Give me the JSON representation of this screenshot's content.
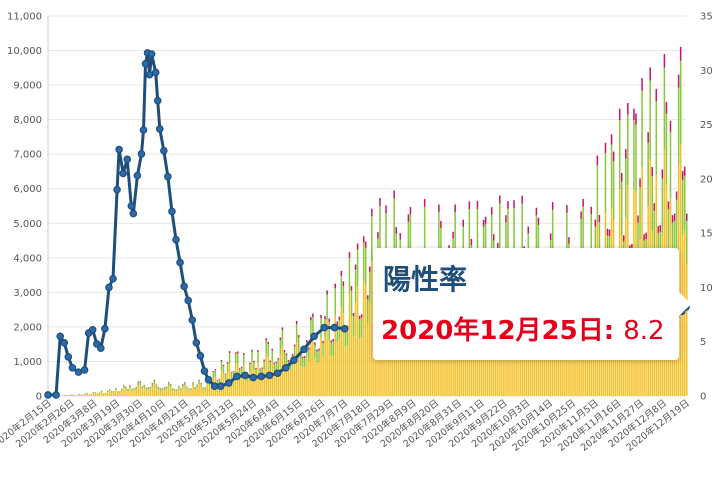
{
  "chart_data": {
    "type": "bar+line",
    "title": "",
    "y_left": {
      "min": 0,
      "max": 11000,
      "ticks": [
        "0",
        "1,000",
        "2,000",
        "3,000",
        "4,000",
        "5,000",
        "6,000",
        "7,000",
        "8,000",
        "9,000",
        "10,000",
        "11,000"
      ]
    },
    "y_right": {
      "min": 0,
      "max": 35,
      "ticks": [
        "0",
        "5",
        "10",
        "15",
        "20",
        "25",
        "30",
        "35"
      ]
    },
    "x_ticks": [
      "2020年2月15日",
      "2020年2月26日",
      "2020年3月8日",
      "2020年3月19日",
      "2020年3月30日",
      "2020年4月10日",
      "2020年4月21日",
      "2020年5月2日",
      "2020年5月13日",
      "2020年5月24日",
      "2020年6月4日",
      "2020年6月15日",
      "2020年6月26日",
      "2020年7月7日",
      "2020年7月18日",
      "2020年7月29日",
      "2020年8月9日",
      "2020年8月20日",
      "2020年8月31日",
      "2020年9月11日",
      "2020年9月22日",
      "2020年10月3日",
      "2020年10月14日",
      "2020年10月25日",
      "2020年11月5日",
      "2020年11月16日",
      "2020年11月27日",
      "2020年12月8日",
      "2020年12月19日"
    ],
    "x_start": "2020-02-15",
    "x_end": "2020-12-25",
    "bar_stack_colors": [
      "#f5c026",
      "#8cc63f",
      "#c0186e"
    ],
    "bars_weekly": [
      {
        "week_start": "2020-02-15",
        "total": 0
      },
      {
        "week_start": "2020-02-22",
        "total": 30
      },
      {
        "week_start": "2020-02-29",
        "total": 50
      },
      {
        "week_start": "2020-03-07",
        "total": 100
      },
      {
        "week_start": "2020-03-14",
        "total": 150
      },
      {
        "week_start": "2020-03-21",
        "total": 250
      },
      {
        "week_start": "2020-03-28",
        "total": 400
      },
      {
        "week_start": "2020-04-04",
        "total": 450
      },
      {
        "week_start": "2020-04-11",
        "total": 400
      },
      {
        "week_start": "2020-04-18",
        "total": 350
      },
      {
        "week_start": "2020-04-25",
        "total": 400
      },
      {
        "week_start": "2020-05-02",
        "total": 450
      },
      {
        "week_start": "2020-05-09",
        "total": 900
      },
      {
        "week_start": "2020-05-16",
        "total": 1300
      },
      {
        "week_start": "2020-05-23",
        "total": 1100
      },
      {
        "week_start": "2020-05-30",
        "total": 1500
      },
      {
        "week_start": "2020-06-06",
        "total": 1800
      },
      {
        "week_start": "2020-06-13",
        "total": 1900
      },
      {
        "week_start": "2020-06-20",
        "total": 2100
      },
      {
        "week_start": "2020-06-27",
        "total": 2500
      },
      {
        "week_start": "2020-07-04",
        "total": 3000
      },
      {
        "week_start": "2020-07-11",
        "total": 3700
      },
      {
        "week_start": "2020-07-18",
        "total": 4300
      },
      {
        "week_start": "2020-07-25",
        "total": 5200
      },
      {
        "week_start": "2020-08-01",
        "total": 5500
      },
      {
        "week_start": "2020-08-08",
        "total": 5400
      },
      {
        "week_start": "2020-08-15",
        "total": 5100
      },
      {
        "week_start": "2020-08-22",
        "total": 5300
      },
      {
        "week_start": "2020-08-29",
        "total": 5200
      },
      {
        "week_start": "2020-09-05",
        "total": 5100
      },
      {
        "week_start": "2020-09-12",
        "total": 5200
      },
      {
        "week_start": "2020-09-19",
        "total": 5000
      },
      {
        "week_start": "2020-09-26",
        "total": 5400
      },
      {
        "week_start": "2020-10-03",
        "total": 5300
      },
      {
        "week_start": "2020-10-10",
        "total": 5200
      },
      {
        "week_start": "2020-10-17",
        "total": 5300
      },
      {
        "week_start": "2020-10-24",
        "total": 5000
      },
      {
        "week_start": "2020-10-31",
        "total": 5200
      },
      {
        "week_start": "2020-11-07",
        "total": 5700
      },
      {
        "week_start": "2020-11-14",
        "total": 6800
      },
      {
        "week_start": "2020-11-21",
        "total": 7500
      },
      {
        "week_start": "2020-11-28",
        "total": 8000
      },
      {
        "week_start": "2020-12-05",
        "total": 8600
      },
      {
        "week_start": "2020-12-12",
        "total": 9000
      },
      {
        "week_start": "2020-12-19",
        "total": 9600
      }
    ],
    "positivity_rate_series": {
      "axis": "right",
      "color": "#1f4e79",
      "points": [
        {
          "date": "2020-02-15",
          "value": 0.1
        },
        {
          "date": "2020-02-19",
          "value": 0.1
        },
        {
          "date": "2020-02-21",
          "value": 5.5
        },
        {
          "date": "2020-02-23",
          "value": 4.9
        },
        {
          "date": "2020-02-25",
          "value": 3.6
        },
        {
          "date": "2020-02-27",
          "value": 2.6
        },
        {
          "date": "2020-03-01",
          "value": 2.2
        },
        {
          "date": "2020-03-04",
          "value": 2.4
        },
        {
          "date": "2020-03-06",
          "value": 5.8
        },
        {
          "date": "2020-03-08",
          "value": 6.1
        },
        {
          "date": "2020-03-10",
          "value": 4.8
        },
        {
          "date": "2020-03-12",
          "value": 4.4
        },
        {
          "date": "2020-03-14",
          "value": 6.2
        },
        {
          "date": "2020-03-16",
          "value": 10.0
        },
        {
          "date": "2020-03-18",
          "value": 10.8
        },
        {
          "date": "2020-03-20",
          "value": 19.0
        },
        {
          "date": "2020-03-21",
          "value": 22.7
        },
        {
          "date": "2020-03-23",
          "value": 20.5
        },
        {
          "date": "2020-03-25",
          "value": 21.8
        },
        {
          "date": "2020-03-27",
          "value": 17.5
        },
        {
          "date": "2020-03-28",
          "value": 16.8
        },
        {
          "date": "2020-03-30",
          "value": 20.3
        },
        {
          "date": "2020-04-01",
          "value": 22.3
        },
        {
          "date": "2020-04-02",
          "value": 24.5
        },
        {
          "date": "2020-04-03",
          "value": 30.6
        },
        {
          "date": "2020-04-04",
          "value": 31.6
        },
        {
          "date": "2020-04-05",
          "value": 29.6
        },
        {
          "date": "2020-04-06",
          "value": 31.5
        },
        {
          "date": "2020-04-08",
          "value": 29.8
        },
        {
          "date": "2020-04-09",
          "value": 27.2
        },
        {
          "date": "2020-04-10",
          "value": 24.6
        },
        {
          "date": "2020-04-12",
          "value": 22.6
        },
        {
          "date": "2020-04-14",
          "value": 20.2
        },
        {
          "date": "2020-04-16",
          "value": 17.0
        },
        {
          "date": "2020-04-18",
          "value": 14.4
        },
        {
          "date": "2020-04-20",
          "value": 12.3
        },
        {
          "date": "2020-04-22",
          "value": 10.1
        },
        {
          "date": "2020-04-24",
          "value": 8.8
        },
        {
          "date": "2020-04-26",
          "value": 7.0
        },
        {
          "date": "2020-04-28",
          "value": 4.9
        },
        {
          "date": "2020-04-30",
          "value": 3.7
        },
        {
          "date": "2020-05-02",
          "value": 2.3
        },
        {
          "date": "2020-05-04",
          "value": 1.5
        },
        {
          "date": "2020-05-07",
          "value": 0.9
        },
        {
          "date": "2020-05-10",
          "value": 0.9
        },
        {
          "date": "2020-05-14",
          "value": 1.2
        },
        {
          "date": "2020-05-18",
          "value": 1.8
        },
        {
          "date": "2020-05-22",
          "value": 1.9
        },
        {
          "date": "2020-05-26",
          "value": 1.7
        },
        {
          "date": "2020-05-30",
          "value": 1.8
        },
        {
          "date": "2020-06-03",
          "value": 1.9
        },
        {
          "date": "2020-06-07",
          "value": 2.1
        },
        {
          "date": "2020-06-11",
          "value": 2.6
        },
        {
          "date": "2020-06-15",
          "value": 3.3
        },
        {
          "date": "2020-06-20",
          "value": 4.3
        },
        {
          "date": "2020-06-25",
          "value": 5.5
        },
        {
          "date": "2020-06-30",
          "value": 6.3
        },
        {
          "date": "2020-07-05",
          "value": 6.3
        },
        {
          "date": "2020-07-10",
          "value": 6.2
        }
      ],
      "tail_points": [
        {
          "date": "2020-12-10",
          "value": 6.8
        },
        {
          "date": "2020-12-15",
          "value": 7.1
        },
        {
          "date": "2020-12-20",
          "value": 7.4
        },
        {
          "date": "2020-12-23",
          "value": 7.8
        },
        {
          "date": "2020-12-25",
          "value": 8.2
        }
      ]
    }
  },
  "tooltip": {
    "title": "陽性率",
    "date_label": "2020年12月25日:",
    "value": "8.2"
  }
}
